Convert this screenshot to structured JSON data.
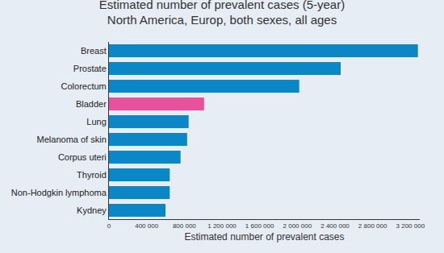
{
  "chart_data": {
    "type": "bar",
    "orientation": "horizontal",
    "title": "Estimated number of prevalent cases (5-year)",
    "subtitle": "North America, Europ, both sexes, all ages",
    "x_label": "Estimated number of prevalent cases",
    "categories": [
      "Breast",
      "Prostate",
      "Colorectum",
      "Bladder",
      "Lung",
      "Melanoma of skin",
      "Corpus uteri",
      "Thyroid",
      "Non-Hodgkin lymphoma",
      "Kydney"
    ],
    "values": [
      3280000,
      2460000,
      2020000,
      1010000,
      846000,
      830000,
      760000,
      645000,
      645000,
      600000
    ],
    "colors": [
      "#0b87c8",
      "#0b87c8",
      "#0b87c8",
      "#e8519b",
      "#0b87c8",
      "#0b87c8",
      "#0b87c8",
      "#0b87c8",
      "#0b87c8",
      "#0b87c8"
    ],
    "xlim": [
      0,
      3300000
    ],
    "xticks": [
      0,
      {
        "value": 400000,
        "label": "400 000"
      },
      {
        "value": 800000,
        "label": "800 000"
      },
      {
        "value": 1200000,
        "label": "1 200 000"
      },
      {
        "value": 1600000,
        "label": "1 600 000"
      },
      {
        "value": 2000000,
        "label": "2 000 000"
      },
      {
        "value": 2400000,
        "label": "2 400 000"
      },
      {
        "value": 2800000,
        "label": "2 800 000"
      },
      {
        "value": 3200000,
        "label": "3 200 000"
      }
    ],
    "grid": false
  }
}
